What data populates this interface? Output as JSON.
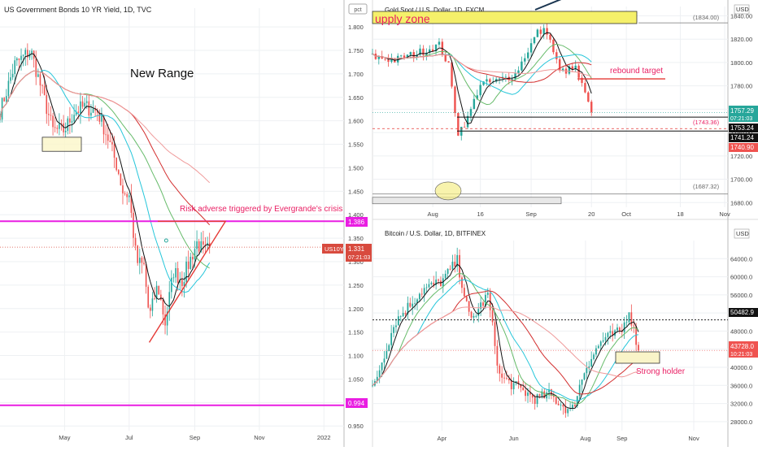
{
  "colors": {
    "up": "#26a69a",
    "down": "#ef5350",
    "magenta": "#e91ee2",
    "annotation": "#e91e63",
    "grid": "#eef0f3",
    "axis_text": "#444444",
    "ma_black": "#111111",
    "ma_teal": "#26c6da",
    "ma_green": "#66bb6a",
    "ma_red": "#ef9a9a",
    "ma_darkred": "#d32f2f",
    "highlight_yellow": "#f5f06a"
  },
  "panels": {
    "us10y": {
      "title": "US Government Bonds 10 YR Yield, 1D, TVC",
      "pct_label": "pct",
      "annotation_range": "New Range",
      "annotation_evergrande": "Risk adverse triggered by Evergrande's crisis",
      "last_ticker": "US10Y",
      "last_value": "1.331",
      "countdown": "07:21:03",
      "level_high": "1.386",
      "level_low": "0.994"
    },
    "gold": {
      "title": "Gold Spot / U.S. Dollar, 1D, FXCM",
      "currency": "USD",
      "supply_zone": "upply zone",
      "rebound_target": "rebound target",
      "level_1834": "(1834.00)",
      "level_1743": "(1743.36)",
      "level_1687": "(1687.32)",
      "tag_green": "1757.29",
      "tag_green_time": "07:21:03",
      "tag_black1": "1753.24",
      "tag_black2": "1741.24",
      "tag_red": "1740.90"
    },
    "btc": {
      "title": "Bitcoin / U.S. Dollar, 1D, BITFINEX",
      "currency": "USD",
      "strong_holder": "Strong holder",
      "tag_black": "50482.9",
      "tag_red": "43728.0",
      "tag_red_time": "10:21:03"
    }
  },
  "chart_data": [
    {
      "type": "line",
      "title": "US Government Bonds 10 YR Yield, 1D, TVC",
      "y_ticks": [
        "1.800",
        "1.750",
        "1.700",
        "1.650",
        "1.600",
        "1.550",
        "1.500",
        "1.450",
        "1.400",
        "1.350",
        "1.300",
        "1.250",
        "1.200",
        "1.150",
        "1.100",
        "1.050",
        "1.000",
        "0.950"
      ],
      "ylim": [
        0.94,
        1.84
      ],
      "x_ticks": [
        "May",
        "Jul",
        "Sep",
        "Nov",
        "2022"
      ],
      "x_tick_dates": [
        "2021-05-01",
        "2021-07-01",
        "2021-09-01",
        "2021-11-01",
        "2022-01-01"
      ],
      "xlim": [
        "2021-03-01",
        "2022-01-20"
      ],
      "x": [
        "2021-03-01",
        "2021-03-15",
        "2021-03-30",
        "2021-04-10",
        "2021-04-20",
        "2021-05-01",
        "2021-05-10",
        "2021-05-20",
        "2021-06-01",
        "2021-06-10",
        "2021-06-20",
        "2021-06-25",
        "2021-07-01",
        "2021-07-08",
        "2021-07-15",
        "2021-07-20",
        "2021-07-28",
        "2021-08-04",
        "2021-08-12",
        "2021-08-20",
        "2021-08-27",
        "2021-09-03",
        "2021-09-10",
        "2021-09-15"
      ],
      "series": [
        {
          "values": [
            1.62,
            1.72,
            1.75,
            1.66,
            1.58,
            1.58,
            1.62,
            1.63,
            1.62,
            1.57,
            1.5,
            1.45,
            1.44,
            1.3,
            1.29,
            1.18,
            1.25,
            1.17,
            1.28,
            1.26,
            1.3,
            1.34,
            1.32,
            1.331
          ]
        }
      ],
      "horizontal_levels": [
        1.386,
        0.994
      ]
    },
    {
      "type": "line",
      "title": "Gold Spot / U.S. Dollar, 1D, FXCM",
      "y_ticks": [
        "1840.00",
        "1820.00",
        "1800.00",
        "1780.00",
        "1760.00",
        "1740.00",
        "1720.00",
        "1700.00",
        "1680.00"
      ],
      "ylim": [
        1676,
        1848
      ],
      "x_ticks": [
        "Aug",
        "16",
        "Sep",
        "20",
        "Oct",
        "18",
        "Nov"
      ],
      "x_tick_dates": [
        "2021-08-01",
        "2021-08-16",
        "2021-09-01",
        "2021-09-20",
        "2021-10-01",
        "2021-10-18",
        "2021-11-01"
      ],
      "xlim": [
        "2021-07-13",
        "2021-11-02"
      ],
      "x": [
        "2021-07-13",
        "2021-07-20",
        "2021-07-27",
        "2021-08-03",
        "2021-08-06",
        "2021-08-09",
        "2021-08-12",
        "2021-08-16",
        "2021-08-20",
        "2021-08-27",
        "2021-09-03",
        "2021-09-06",
        "2021-09-10",
        "2021-09-15",
        "2021-09-20"
      ],
      "series": [
        {
          "values": [
            1805,
            1802,
            1808,
            1815,
            1797,
            1740,
            1752,
            1782,
            1783,
            1790,
            1826,
            1827,
            1792,
            1795,
            1757.29
          ]
        }
      ],
      "horizontal_levels": [
        1834.0,
        1743.36,
        1687.32,
        1786
      ]
    },
    {
      "type": "line",
      "title": "Bitcoin / U.S. Dollar, 1D, BITFINEX",
      "y_ticks": [
        "64000.0",
        "60000.0",
        "56000.0",
        "52000.0",
        "48000.0",
        "44000.0",
        "40000.0",
        "36000.0",
        "32000.0",
        "28000.0"
      ],
      "ylim": [
        26000,
        68000
      ],
      "x_ticks": [
        "Apr",
        "Jun",
        "Aug",
        "Sep",
        "Nov"
      ],
      "x_tick_dates": [
        "2021-04-01",
        "2021-06-01",
        "2021-08-01",
        "2021-09-01",
        "2021-11-01"
      ],
      "xlim": [
        "2021-02-01",
        "2021-11-30"
      ],
      "x": [
        "2021-02-01",
        "2021-02-20",
        "2021-03-15",
        "2021-04-01",
        "2021-04-14",
        "2021-04-25",
        "2021-05-10",
        "2021-05-20",
        "2021-06-01",
        "2021-06-20",
        "2021-07-01",
        "2021-07-20",
        "2021-08-01",
        "2021-08-15",
        "2021-09-01",
        "2021-09-07",
        "2021-09-15"
      ],
      "series": [
        {
          "values": [
            35000,
            50000,
            57000,
            59000,
            63500,
            50000,
            56000,
            38000,
            36000,
            33000,
            34000,
            30000,
            40000,
            46000,
            48000,
            52700,
            43728
          ]
        }
      ],
      "horizontal_levels": [
        50482.9
      ]
    }
  ]
}
